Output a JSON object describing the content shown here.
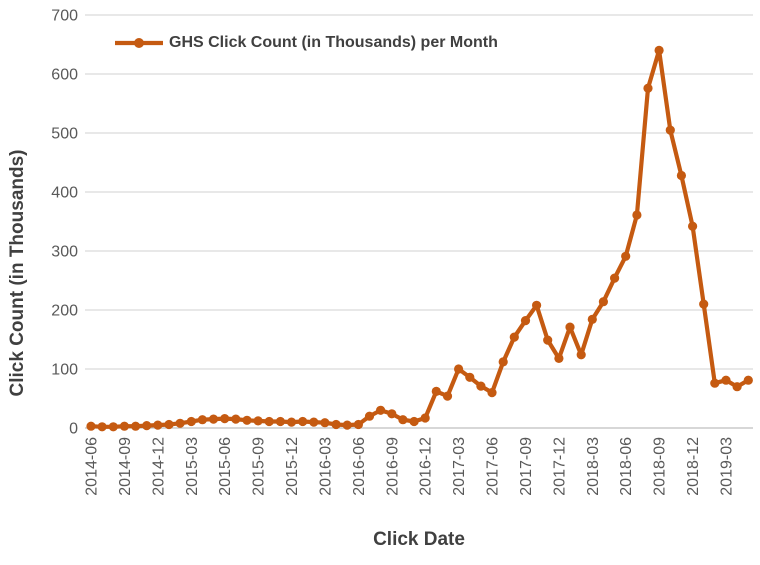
{
  "chart_data": {
    "type": "line",
    "title": "",
    "xlabel": "Click Date",
    "ylabel": "Click Count (in Thousands)",
    "legend_label": "GHS Click Count (in Thousands) per Month",
    "legend_position": "top-left-inside",
    "grid": "horizontal",
    "ylim": [
      0,
      700
    ],
    "yticks": [
      0,
      100,
      200,
      300,
      400,
      500,
      600,
      700
    ],
    "x_tick_every": 3,
    "x_tick_labels": [
      "2014-06",
      "2014-09",
      "2014-12",
      "2015-03",
      "2015-06",
      "2015-09",
      "2015-12",
      "2016-03",
      "2016-06",
      "2016-09",
      "2016-12",
      "2017-03",
      "2017-06",
      "2017-09",
      "2017-12",
      "2018-03",
      "2018-06",
      "2018-09",
      "2018-12",
      "2019-03"
    ],
    "x": [
      "2014-06",
      "2014-07",
      "2014-08",
      "2014-09",
      "2014-10",
      "2014-11",
      "2014-12",
      "2015-01",
      "2015-02",
      "2015-03",
      "2015-04",
      "2015-05",
      "2015-06",
      "2015-07",
      "2015-08",
      "2015-09",
      "2015-10",
      "2015-11",
      "2015-12",
      "2016-01",
      "2016-02",
      "2016-03",
      "2016-04",
      "2016-05",
      "2016-06",
      "2016-07",
      "2016-08",
      "2016-09",
      "2016-10",
      "2016-11",
      "2016-12",
      "2017-01",
      "2017-02",
      "2017-03",
      "2017-04",
      "2017-05",
      "2017-06",
      "2017-07",
      "2017-08",
      "2017-09",
      "2017-10",
      "2017-11",
      "2017-12",
      "2018-01",
      "2018-02",
      "2018-03",
      "2018-04",
      "2018-05",
      "2018-06",
      "2018-07",
      "2018-08",
      "2018-09",
      "2018-10",
      "2018-11",
      "2018-12",
      "2019-01",
      "2019-02",
      "2019-03",
      "2019-04",
      "2019-05"
    ],
    "series": [
      {
        "name": "GHS Click Count (in Thousands) per Month",
        "values": [
          3,
          2,
          2,
          3,
          3,
          4,
          5,
          6,
          8,
          11,
          14,
          15,
          16,
          15,
          13,
          12,
          11,
          11,
          10,
          11,
          10,
          9,
          6,
          5,
          6,
          20,
          30,
          24,
          14,
          11,
          17,
          62,
          54,
          100,
          86,
          71,
          60,
          112,
          154,
          182,
          208,
          149,
          118,
          171,
          124,
          184,
          214,
          254,
          291,
          361,
          576,
          640,
          505,
          428,
          342,
          210,
          76,
          81,
          70,
          81
        ]
      }
    ],
    "colors": {
      "series": "#C55A11",
      "gridline": "#D9D9D9",
      "axis_line": "#BFBFBF",
      "tick_label": "#595959",
      "title_text": "#404040"
    }
  }
}
